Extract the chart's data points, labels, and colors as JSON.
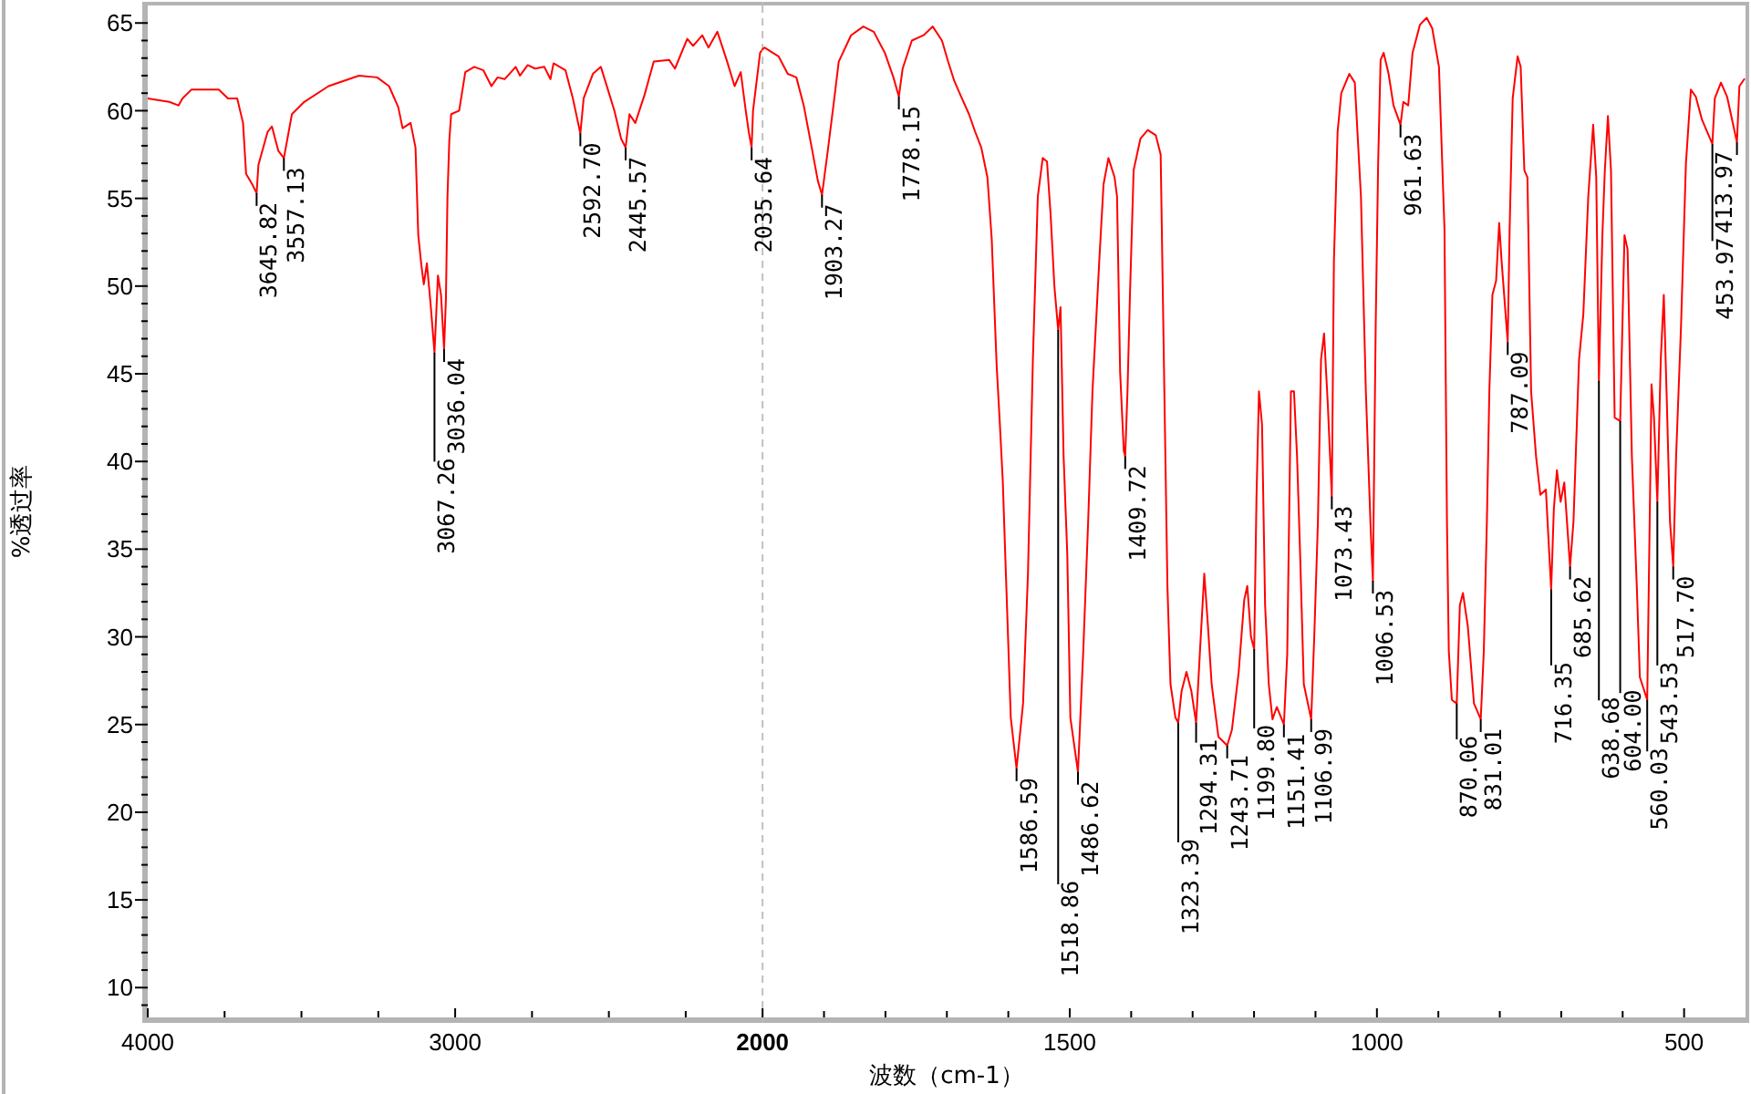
{
  "chart_data": [
    {
      "type": "line",
      "ylabel": "%透过率",
      "xlim": [
        4000,
        2000
      ],
      "ylim": [
        8.3,
        66
      ],
      "xticks": [
        4000,
        {
          "value": 3750,
          "label": null
        },
        {
          "value": 3500,
          "label": null
        },
        {
          "value": 3250,
          "label": null
        },
        3000,
        {
          "value": 2750,
          "label": null
        },
        {
          "value": 2500,
          "label": null
        },
        {
          "value": 2250,
          "label": null
        }
      ],
      "yticks": [
        {
          "value": 9,
          "label": null
        },
        10,
        {
          "value": 11,
          "label": null
        },
        {
          "value": 12,
          "label": null
        },
        {
          "value": 13,
          "label": null
        },
        {
          "value": 14,
          "label": null
        },
        15,
        {
          "value": 16,
          "label": null
        },
        {
          "value": 17,
          "label": null
        },
        {
          "value": 18,
          "label": null
        },
        {
          "value": 19,
          "label": null
        },
        20,
        {
          "value": 21,
          "label": null
        },
        {
          "value": 22,
          "label": null
        },
        {
          "value": 23,
          "label": null
        },
        {
          "value": 24,
          "label": null
        },
        25,
        {
          "value": 26,
          "label": null
        },
        {
          "value": 27,
          "label": null
        },
        {
          "value": 28,
          "label": null
        },
        {
          "value": 29,
          "label": null
        },
        30,
        {
          "value": 31,
          "label": null
        },
        {
          "value": 32,
          "label": null
        },
        {
          "value": 33,
          "label": null
        },
        {
          "value": 34,
          "label": null
        },
        35,
        {
          "value": 36,
          "label": null
        },
        {
          "value": 37,
          "label": null
        },
        {
          "value": 38,
          "label": null
        },
        {
          "value": 39,
          "label": null
        },
        40,
        {
          "value": 41,
          "label": null
        },
        {
          "value": 42,
          "label": null
        },
        {
          "value": 43,
          "label": null
        },
        {
          "value": 44,
          "label": null
        },
        45,
        {
          "value": 46,
          "label": null
        },
        {
          "value": 47,
          "label": null
        },
        {
          "value": 48,
          "label": null
        },
        {
          "value": 49,
          "label": null
        },
        50,
        {
          "value": 51,
          "label": null
        },
        {
          "value": 52,
          "label": null
        },
        {
          "value": 53,
          "label": null
        },
        {
          "value": 54,
          "label": null
        },
        55,
        {
          "value": 56,
          "label": null
        },
        {
          "value": 57,
          "label": null
        },
        {
          "value": 58,
          "label": null
        },
        {
          "value": 59,
          "label": null
        },
        60,
        {
          "value": 61,
          "label": null
        },
        {
          "value": 62,
          "label": null
        },
        {
          "value": 63,
          "label": null
        },
        {
          "value": 64,
          "label": null
        },
        65
      ],
      "x": [
        4000,
        3930,
        3900,
        3887,
        3858,
        3800,
        3769,
        3739,
        3709,
        3690,
        3680,
        3660,
        3645.82,
        3640,
        3610,
        3596,
        3575,
        3557.13,
        3531,
        3491,
        3412,
        3313,
        3254,
        3215,
        3185,
        3171,
        3145,
        3129,
        3120,
        3110,
        3102,
        3092,
        3080,
        3067.26,
        3056,
        3046,
        3036.04,
        3030,
        3025,
        3019,
        3013,
        2987,
        2967,
        2938,
        2908,
        2882,
        2862,
        2839,
        2803,
        2789,
        2764,
        2740,
        2710,
        2690,
        2680,
        2641,
        2617,
        2600,
        2592.7,
        2582,
        2552,
        2526,
        2503,
        2482,
        2460,
        2445.57,
        2433,
        2414,
        2384,
        2354,
        2304,
        2285,
        2245,
        2226,
        2196,
        2176,
        2147,
        2117,
        2091,
        2071,
        2057,
        2045,
        2035.64,
        2031,
        2008,
        2000
      ],
      "series": [
        {
          "color": "#ff0000",
          "values": [
            60.7,
            60.5,
            60.3,
            60.7,
            61.2,
            61.2,
            61.2,
            60.7,
            60.7,
            59.3,
            56.4,
            55.8,
            55.3,
            56.9,
            58.8,
            59.1,
            57.7,
            57.3,
            59.8,
            60.5,
            61.4,
            62.0,
            61.9,
            61.4,
            60.2,
            59.0,
            59.3,
            57.9,
            52.9,
            51.2,
            50.1,
            51.3,
            49.0,
            46.2,
            50.6,
            49.5,
            46.4,
            49.3,
            55.1,
            58.3,
            59.8,
            60.0,
            62.2,
            62.5,
            62.3,
            61.4,
            61.9,
            61.8,
            62.5,
            62.0,
            62.6,
            62.4,
            62.5,
            61.8,
            62.7,
            62.3,
            60.7,
            59.3,
            58.7,
            60.7,
            62.1,
            62.5,
            61.2,
            60.0,
            58.4,
            57.9,
            59.8,
            59.3,
            60.9,
            62.8,
            62.9,
            62.4,
            64.1,
            63.7,
            64.3,
            63.6,
            64.5,
            62.9,
            61.4,
            62.2,
            60.3,
            58.8,
            57.9,
            60.0,
            63.3,
            63.5
          ]
        }
      ],
      "annotations": [
        {
          "text": "3645.82",
          "x": 3645.82,
          "y": 55.3
        },
        {
          "text": "3557.13",
          "x": 3557.13,
          "y": 57.3
        },
        {
          "text": "3067.26",
          "x": 3067.26,
          "y": 46.2
        },
        {
          "text": "3036.04",
          "x": 3036.04,
          "y": 46.4
        },
        {
          "text": "2592.70",
          "x": 2592.7,
          "y": 58.7
        },
        {
          "text": "2445.57",
          "x": 2445.57,
          "y": 57.9
        },
        {
          "text": "2035.64",
          "x": 2035.64,
          "y": 57.9
        }
      ]
    },
    {
      "type": "line",
      "xlabel": "波数（cm-1）",
      "tick_labels": "x",
      "xlim": [
        2000,
        400
      ],
      "ylim": [
        8.3,
        66
      ],
      "xticks": [
        2000,
        {
          "value": 1900,
          "label": null
        },
        {
          "value": 1800,
          "label": null
        },
        {
          "value": 1700,
          "label": null
        },
        {
          "value": 1600,
          "label": null
        },
        1500,
        {
          "value": 1400,
          "label": null
        },
        {
          "value": 1300,
          "label": null
        },
        {
          "value": 1200,
          "label": null
        },
        {
          "value": 1100,
          "label": null
        },
        1000,
        {
          "value": 900,
          "label": null
        },
        {
          "value": 800,
          "label": null
        },
        {
          "value": 700,
          "label": null
        },
        {
          "value": 600,
          "label": null
        },
        500
      ],
      "x": [
        2000,
        1997,
        1974,
        1959,
        1945,
        1933,
        1920,
        1910,
        1903.27,
        1895,
        1885,
        1876,
        1856,
        1836,
        1819,
        1801,
        1787,
        1778.15,
        1772,
        1757,
        1738,
        1723,
        1708,
        1698,
        1688,
        1678,
        1664,
        1654,
        1644,
        1634,
        1627,
        1619,
        1614,
        1609,
        1605,
        1596,
        1586.59,
        1576,
        1568,
        1560,
        1552,
        1544,
        1537,
        1531,
        1525,
        1518.86,
        1515,
        1510,
        1504,
        1499,
        1486.62,
        1478,
        1470,
        1463,
        1452,
        1445,
        1437,
        1427,
        1423,
        1418,
        1412,
        1409.72,
        1406,
        1402,
        1396,
        1385,
        1373,
        1360,
        1352,
        1346,
        1341,
        1336,
        1328,
        1323.39,
        1318,
        1310,
        1302,
        1294.31,
        1288,
        1281,
        1275,
        1269,
        1258,
        1243.71,
        1236,
        1225,
        1216,
        1211,
        1205,
        1199.8,
        1196,
        1192,
        1187,
        1182,
        1176,
        1170,
        1163,
        1151.41,
        1146,
        1140,
        1135,
        1130,
        1125,
        1119,
        1106.99,
        1102,
        1096,
        1091,
        1086,
        1080,
        1073.43,
        1070,
        1064,
        1058,
        1045,
        1036,
        1026,
        1018,
        1010,
        1006.53,
        1002,
        998,
        994,
        989,
        981,
        973,
        961.63,
        957,
        949,
        942,
        930,
        919,
        910,
        899,
        890,
        886,
        883,
        878,
        870.06,
        865,
        860,
        852,
        842,
        831.01,
        826,
        821,
        817,
        812,
        806,
        801,
        797,
        787.09,
        784,
        779,
        771,
        766,
        760,
        755,
        749,
        741,
        734,
        725,
        716.35,
        712,
        707,
        701,
        695,
        685.62,
        680,
        671,
        664,
        656,
        648,
        643,
        638.68,
        633,
        629,
        624,
        619,
        613,
        604,
        597,
        592,
        585,
        577,
        572,
        560.03,
        556,
        553,
        549,
        543.53,
        538,
        533,
        528,
        523,
        517.7,
        513,
        505,
        497,
        489,
        481,
        471,
        453.97,
        450,
        440,
        430,
        413.97,
        410,
        402
      ],
      "series": [
        {
          "color": "#ff0000",
          "values": [
            63.5,
            63.6,
            63.1,
            62.1,
            61.9,
            60.3,
            57.9,
            56.0,
            55.2,
            57.4,
            60.2,
            62.8,
            64.3,
            64.8,
            64.5,
            63.3,
            61.9,
            60.8,
            62.4,
            64.0,
            64.3,
            64.8,
            64.0,
            62.8,
            61.7,
            60.9,
            59.8,
            58.8,
            57.9,
            56.2,
            52.7,
            45.5,
            42.3,
            38.9,
            34.7,
            25.4,
            22.5,
            26.2,
            33.6,
            45.8,
            55.1,
            57.3,
            57.1,
            54.0,
            50.0,
            47.5,
            48.8,
            40.3,
            34.7,
            25.4,
            22.3,
            29.2,
            36.6,
            44.0,
            51.4,
            55.8,
            57.3,
            56.2,
            55.1,
            45.1,
            40.6,
            40.3,
            44.0,
            49.5,
            56.6,
            58.4,
            58.9,
            58.6,
            57.5,
            44.0,
            32.9,
            27.3,
            25.4,
            25.1,
            26.9,
            28.0,
            26.9,
            25.1,
            29.2,
            33.6,
            30.6,
            27.3,
            24.3,
            23.8,
            24.7,
            28.0,
            32.1,
            32.9,
            30.0,
            29.3,
            38.0,
            44.0,
            42.1,
            31.8,
            27.3,
            25.3,
            26.0,
            25.0,
            29.0,
            44.0,
            44.0,
            40.3,
            34.7,
            27.3,
            25.3,
            30.0,
            36.6,
            45.8,
            47.3,
            43.3,
            38.0,
            51.4,
            58.8,
            61.0,
            62.1,
            61.6,
            55.1,
            44.0,
            36.0,
            33.2,
            47.7,
            57.0,
            62.9,
            63.3,
            62.1,
            60.3,
            59.2,
            60.5,
            60.3,
            63.3,
            64.9,
            65.3,
            64.7,
            62.5,
            53.2,
            36.6,
            29.2,
            26.4,
            26.2,
            31.8,
            32.5,
            30.6,
            26.2,
            25.3,
            29.2,
            36.6,
            44.0,
            49.5,
            50.3,
            53.6,
            51.4,
            46.8,
            53.2,
            60.7,
            63.1,
            62.5,
            56.6,
            56.2,
            44.0,
            40.3,
            38.1,
            38.4,
            32.7,
            37.3,
            39.5,
            37.7,
            38.8,
            34.0,
            36.6,
            45.8,
            48.4,
            55.1,
            59.2,
            56.2,
            44.6,
            52.9,
            56.6,
            59.7,
            56.6,
            42.5,
            42.3,
            52.9,
            52.1,
            40.3,
            32.9,
            27.7,
            26.4,
            36.6,
            44.4,
            42.5,
            37.7,
            45.8,
            49.5,
            43.3,
            36.6,
            34.0,
            40.3,
            47.7,
            57.0,
            61.2,
            60.8,
            59.5,
            58.1,
            60.7,
            61.6,
            60.8,
            58.2,
            61.4,
            61.8
          ]
        }
      ],
      "ref_lines": [
        {
          "axis": "x",
          "value": 2000,
          "color": "#c0c0c0",
          "line_style": "dashed"
        }
      ],
      "annotations": [
        {
          "text": "1903.27",
          "x": 1903.27,
          "y": 55.2
        },
        {
          "text": "1778.15",
          "x": 1778.15,
          "y": 60.8
        },
        {
          "text": "1586.59",
          "x": 1586.59,
          "y": 22.5
        },
        {
          "text": "1518.86",
          "x": 1518.86,
          "y": 47.5
        },
        {
          "text": "1486.62",
          "x": 1486.62,
          "y": 22.3
        },
        {
          "text": "1409.72",
          "x": 1409.72,
          "y": 40.3
        },
        {
          "text": "1323.39",
          "x": 1323.39,
          "y": 25.1
        },
        {
          "text": "1294.31",
          "x": 1294.31,
          "y": 25.1
        },
        {
          "text": "1243.71",
          "x": 1243.71,
          "y": 23.8
        },
        {
          "text": "1199.80",
          "x": 1199.8,
          "y": 29.3
        },
        {
          "text": "1151.41",
          "x": 1151.41,
          "y": 25.0
        },
        {
          "text": "1106.99",
          "x": 1106.99,
          "y": 25.3
        },
        {
          "text": "1073.43",
          "x": 1073.43,
          "y": 38.0
        },
        {
          "text": "1006.53",
          "x": 1006.53,
          "y": 33.2
        },
        {
          "text": "961.63",
          "x": 961.63,
          "y": 59.2
        },
        {
          "text": "870.06",
          "x": 870.06,
          "y": 26.2
        },
        {
          "text": "831.01",
          "x": 831.01,
          "y": 25.3
        },
        {
          "text": "787.09",
          "x": 787.09,
          "y": 46.8
        },
        {
          "text": "716.35",
          "x": 716.35,
          "y": 32.7
        },
        {
          "text": "685.62",
          "x": 685.62,
          "y": 34.0
        },
        {
          "text": "638.68",
          "x": 638.68,
          "y": 44.6
        },
        {
          "text": "604.00",
          "x": 604,
          "y": 42.3
        },
        {
          "text": "560.03",
          "x": 560.03,
          "y": 26.4
        },
        {
          "text": "543.53",
          "x": 543.53,
          "y": 37.7
        },
        {
          "text": "517.70",
          "x": 517.7,
          "y": 34.0
        },
        {
          "text": "453.97",
          "x": 453.97,
          "y": 58.1
        },
        {
          "text": "413.97",
          "x": 413.97,
          "y": 58.2
        }
      ]
    }
  ]
}
